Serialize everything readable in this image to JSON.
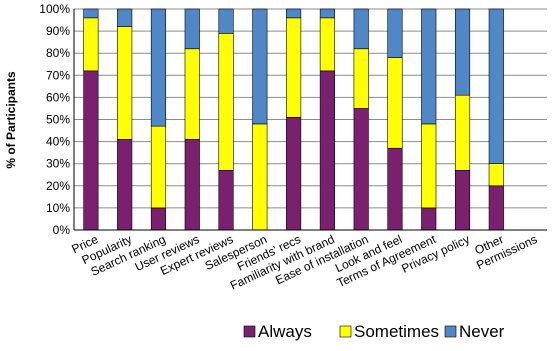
{
  "chart_data": {
    "type": "bar",
    "stacked": true,
    "title": "",
    "xlabel": "",
    "ylabel": "% of Participants",
    "ylim": [
      0,
      100
    ],
    "yticks": [
      "0%",
      "10%",
      "20%",
      "30%",
      "40%",
      "50%",
      "60%",
      "70%",
      "80%",
      "90%",
      "100%"
    ],
    "grid": true,
    "legend_position": "bottom-right",
    "categories": [
      "Price",
      "Popularity",
      "Search ranking",
      "User reviews",
      "Expert reviews",
      "Salesperson",
      "Friends' recs",
      "Familiarity with brand",
      "Ease of installation",
      "Look and feel",
      "Terms of Agreement",
      "Privacy policy",
      "Other",
      "Permissions"
    ],
    "series": [
      {
        "name": "Always",
        "color": "#7b1f6f",
        "values": [
          72,
          41,
          10,
          41,
          27,
          0,
          51,
          72,
          55,
          37,
          10,
          27,
          20,
          0
        ]
      },
      {
        "name": "Sometimes",
        "color": "#ffff00",
        "values": [
          24,
          51,
          37,
          41,
          62,
          48,
          45,
          24,
          27,
          41,
          38,
          34,
          10,
          0
        ]
      },
      {
        "name": "Never",
        "color": "#4f87c7",
        "values": [
          4,
          8,
          53,
          18,
          11,
          52,
          4,
          4,
          18,
          22,
          52,
          39,
          70,
          0
        ]
      }
    ]
  }
}
